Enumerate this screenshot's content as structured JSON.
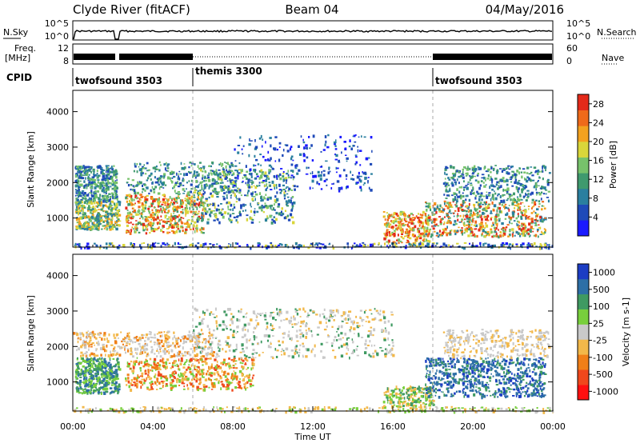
{
  "header": {
    "station": "Clyde River (fitACF)",
    "beam": "Beam 04",
    "date": "04/May/2016"
  },
  "top_panels": {
    "nsky": {
      "left_label": "N.Sky",
      "left_ticks": [
        "10^5",
        "10^0"
      ],
      "right_ticks": [
        "10^5",
        "10^0"
      ],
      "right_label": "N.Search"
    },
    "freq": {
      "left_label_line1": "Freq.",
      "left_label_line2": "[MHz]",
      "left_ticks": [
        "12",
        "8"
      ],
      "right_ticks": [
        "60",
        "0"
      ],
      "right_label": "Nave"
    },
    "cpid": {
      "label": "CPID",
      "segments": [
        {
          "name": "twofsound 3503",
          "start_h": 0,
          "end_h": 6
        },
        {
          "name": "themis 3300",
          "start_h": 6,
          "end_h": 18
        },
        {
          "name": "twofsound 3503",
          "start_h": 18,
          "end_h": 24
        }
      ]
    }
  },
  "colors": {
    "power": [
      "#1a1aff",
      "#1f4ab8",
      "#2a7f9f",
      "#3f9a6e",
      "#77c26b",
      "#d9d63a",
      "#f3a21f",
      "#ef6a1a",
      "#e42a1a"
    ],
    "velocity": [
      "#ff1010",
      "#f0481c",
      "#f07f18",
      "#f2b84a",
      "#c9c9c9",
      "#78cf3c",
      "#3f9a62",
      "#2d6fa6",
      "#1c3dc4"
    ]
  },
  "chart_data": [
    {
      "type": "heatmap",
      "title": "Beam 04",
      "xlabel": "Time UT",
      "ylabel": "Slant Range [km]",
      "x_ticks": [
        "00:00",
        "04:00",
        "08:00",
        "12:00",
        "16:00",
        "20:00",
        "00:00"
      ],
      "xlim": [
        0,
        24
      ],
      "y_ticks": [
        1000,
        2000,
        3000,
        4000
      ],
      "ylim": [
        180,
        4600
      ],
      "colorbar": {
        "label": "Power [dB]",
        "ticks": [
          4,
          8,
          12,
          16,
          20,
          24,
          28
        ],
        "range": [
          0,
          30
        ]
      }
    },
    {
      "type": "heatmap",
      "xlabel": "Time UT",
      "ylabel": "Slant Range [km]",
      "x_ticks": [
        "00:00",
        "04:00",
        "08:00",
        "12:00",
        "16:00",
        "20:00",
        "00:00"
      ],
      "xlim": [
        0,
        24
      ],
      "y_ticks": [
        1000,
        2000,
        3000,
        4000
      ],
      "ylim": [
        180,
        4600
      ],
      "colorbar": {
        "label": "Velocity [m s-1]",
        "ticks": [
          "1000",
          "500",
          "100",
          "25",
          "-25",
          "-100",
          "-500",
          "-1000"
        ],
        "range": [
          -2000,
          2000
        ]
      },
      "scatter_regions": [
        {
          "t0": 0,
          "t1": 2.3,
          "r0": 700,
          "r1": 1500,
          "class": "positive"
        },
        {
          "t0": 0,
          "t1": 6,
          "r0": 1800,
          "r1": 2300,
          "class": "near-zero"
        },
        {
          "t0": 2.5,
          "t1": 8,
          "r0": 900,
          "r1": 1700,
          "class": "negative"
        },
        {
          "t0": 17.5,
          "t1": 23.5,
          "r0": 700,
          "r1": 1700,
          "class": "positive"
        },
        {
          "t0": 6,
          "t1": 15,
          "r0": 1800,
          "r1": 3000,
          "class": "near-zero"
        }
      ]
    }
  ]
}
